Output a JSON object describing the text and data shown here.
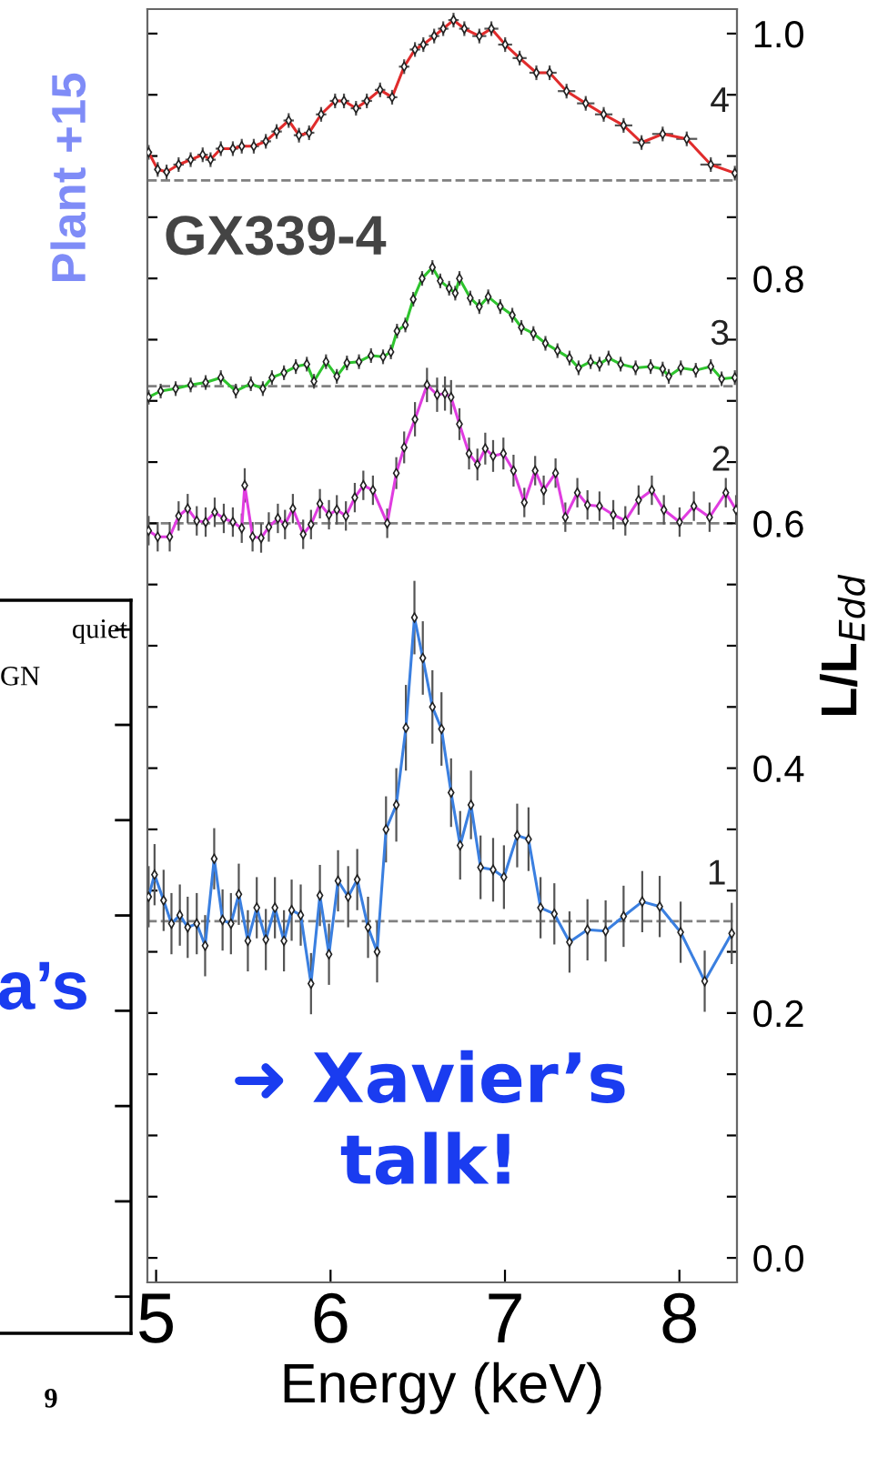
{
  "chart_data": [
    {
      "type": "line",
      "xlabel": "Energy (keV)",
      "ylabel": "L/L$_{Edd}$",
      "xlim": [
        4.95,
        8.33
      ],
      "xticks": [
        5,
        6,
        7,
        8
      ],
      "ylim": [
        -0.02,
        1.02
      ],
      "yticks": [
        {
          "value": 0,
          "label": "0.0"
        },
        {
          "value": 0.05,
          "label": null
        },
        {
          "value": 0.1,
          "label": null
        },
        {
          "value": 0.15,
          "label": null
        },
        {
          "value": 0.2,
          "label": "0.2"
        },
        {
          "value": 0.25,
          "label": null
        },
        {
          "value": 0.3,
          "label": null
        },
        {
          "value": 0.35,
          "label": null
        },
        {
          "value": 0.4,
          "label": "0.4"
        },
        {
          "value": 0.45,
          "label": null
        },
        {
          "value": 0.5,
          "label": null
        },
        {
          "value": 0.55,
          "label": null
        },
        {
          "value": 0.6,
          "label": "0.6"
        },
        {
          "value": 0.65,
          "label": null
        },
        {
          "value": 0.7,
          "label": null
        },
        {
          "value": 0.75,
          "label": null
        },
        {
          "value": 0.8,
          "label": "0.8"
        },
        {
          "value": 0.85,
          "label": null
        },
        {
          "value": 0.9,
          "label": null
        },
        {
          "value": 0.95,
          "label": null
        },
        {
          "value": 1.0,
          "label": "1.0"
        }
      ],
      "marker": "diamond",
      "line_style": "solid",
      "grid": false,
      "legend": false,
      "annotations": [
        "GX339-4",
        "Plant +15",
        "➜ Xavier’s\ntalk!"
      ],
      "ref_lines": [
        {
          "axis": "y",
          "value": 0.275,
          "color": "#808080",
          "line_style": "dashed"
        },
        {
          "axis": "y",
          "value": 0.6,
          "color": "#808080",
          "line_style": "dashed"
        },
        {
          "axis": "y",
          "value": 0.712,
          "color": "#808080",
          "line_style": "dashed"
        },
        {
          "axis": "y",
          "value": 0.88,
          "color": "#808080",
          "line_style": "dashed"
        }
      ],
      "series": [
        {
          "name": "1",
          "color": "#3a7fe0",
          "x": [
            4.957,
            4.991,
            5.043,
            5.088,
            5.136,
            5.181,
            5.233,
            5.281,
            5.333,
            5.381,
            5.429,
            5.474,
            5.526,
            5.577,
            5.629,
            5.681,
            5.733,
            5.777,
            5.829,
            5.888,
            5.939,
            5.991,
            6.043,
            6.101,
            6.153,
            6.215,
            6.267,
            6.318,
            6.377,
            6.432,
            6.481,
            6.529,
            6.584,
            6.636,
            6.691,
            6.743,
            6.805,
            6.86,
            6.932,
            6.994,
            7.07,
            7.135,
            7.204,
            7.283,
            7.37,
            7.473,
            7.577,
            7.68,
            7.787,
            7.887,
            8.007,
            8.145,
            8.3
          ],
          "values": [
            0.295,
            0.313,
            0.292,
            0.273,
            0.28,
            0.27,
            0.273,
            0.255,
            0.326,
            0.276,
            0.273,
            0.297,
            0.259,
            0.286,
            0.26,
            0.286,
            0.259,
            0.284,
            0.28,
            0.224,
            0.296,
            0.248,
            0.308,
            0.295,
            0.309,
            0.27,
            0.25,
            0.35,
            0.37,
            0.433,
            0.523,
            0.49,
            0.45,
            0.432,
            0.38,
            0.337,
            0.37,
            0.319,
            0.317,
            0.311,
            0.345,
            0.342,
            0.286,
            0.281,
            0.258,
            0.268,
            0.267,
            0.279,
            0.291,
            0.287,
            0.266,
            0.226,
            0.265
          ],
          "errors": [
            0.025,
            0.025,
            0.025,
            0.025,
            0.025,
            0.025,
            0.025,
            0.025,
            0.025,
            0.025,
            0.025,
            0.025,
            0.025,
            0.025,
            0.025,
            0.025,
            0.025,
            0.025,
            0.025,
            0.025,
            0.025,
            0.025,
            0.025,
            0.025,
            0.025,
            0.025,
            0.025,
            0.027,
            0.03,
            0.035,
            0.03,
            0.03,
            0.03,
            0.03,
            0.028,
            0.028,
            0.028,
            0.026,
            0.026,
            0.026,
            0.026,
            0.026,
            0.025,
            0.025,
            0.025,
            0.025,
            0.025,
            0.025,
            0.025,
            0.025,
            0.025,
            0.025,
            0.025
          ]
        },
        {
          "name": "2",
          "color": "#e03ce0",
          "x": [
            4.957,
            5.009,
            5.078,
            5.129,
            5.181,
            5.233,
            5.284,
            5.336,
            5.388,
            5.44,
            5.491,
            5.508,
            5.553,
            5.602,
            5.646,
            5.698,
            5.739,
            5.784,
            5.843,
            5.888,
            5.939,
            5.991,
            6.036,
            6.088,
            6.139,
            6.188,
            6.243,
            6.325,
            6.377,
            6.422,
            6.484,
            6.553,
            6.611,
            6.656,
            6.691,
            6.739,
            6.794,
            6.842,
            6.887,
            6.932,
            6.991,
            7.049,
            7.111,
            7.173,
            7.222,
            7.29,
            7.346,
            7.415,
            7.473,
            7.542,
            7.621,
            7.69,
            7.766,
            7.842,
            7.911,
            8.001,
            8.083,
            8.173,
            8.266,
            8.325
          ],
          "values": [
            0.594,
            0.589,
            0.589,
            0.606,
            0.612,
            0.602,
            0.601,
            0.609,
            0.604,
            0.601,
            0.596,
            0.631,
            0.589,
            0.588,
            0.597,
            0.604,
            0.599,
            0.612,
            0.591,
            0.599,
            0.616,
            0.607,
            0.611,
            0.606,
            0.621,
            0.631,
            0.627,
            0.6,
            0.641,
            0.662,
            0.685,
            0.713,
            0.705,
            0.706,
            0.703,
            0.681,
            0.657,
            0.648,
            0.661,
            0.655,
            0.657,
            0.643,
            0.617,
            0.643,
            0.627,
            0.641,
            0.605,
            0.625,
            0.615,
            0.614,
            0.607,
            0.602,
            0.619,
            0.627,
            0.611,
            0.601,
            0.614,
            0.605,
            0.625,
            0.611
          ],
          "errors": [
            0.012,
            0.012,
            0.012,
            0.012,
            0.012,
            0.012,
            0.012,
            0.012,
            0.012,
            0.012,
            0.012,
            0.014,
            0.012,
            0.012,
            0.012,
            0.012,
            0.012,
            0.012,
            0.012,
            0.012,
            0.012,
            0.012,
            0.012,
            0.012,
            0.012,
            0.012,
            0.012,
            0.012,
            0.013,
            0.013,
            0.014,
            0.014,
            0.014,
            0.014,
            0.014,
            0.013,
            0.013,
            0.013,
            0.013,
            0.013,
            0.013,
            0.013,
            0.012,
            0.012,
            0.012,
            0.012,
            0.012,
            0.012,
            0.012,
            0.012,
            0.012,
            0.012,
            0.012,
            0.012,
            0.012,
            0.012,
            0.012,
            0.012,
            0.012,
            0.012
          ]
        },
        {
          "name": "3",
          "color": "#2ec42e",
          "x": [
            4.957,
            5.026,
            5.112,
            5.198,
            5.284,
            5.371,
            5.457,
            5.543,
            5.612,
            5.664,
            5.733,
            5.801,
            5.864,
            5.905,
            5.974,
            6.036,
            6.094,
            6.163,
            6.232,
            6.301,
            6.346,
            6.381,
            6.429,
            6.474,
            6.525,
            6.584,
            6.629,
            6.68,
            6.715,
            6.739,
            6.801,
            6.853,
            6.904,
            6.973,
            7.042,
            7.094,
            7.163,
            7.232,
            7.301,
            7.37,
            7.422,
            7.491,
            7.542,
            7.594,
            7.663,
            7.749,
            7.835,
            7.904,
            7.939,
            8.008,
            8.094,
            8.18,
            8.242,
            8.318
          ],
          "values": [
            0.703,
            0.708,
            0.71,
            0.713,
            0.715,
            0.719,
            0.708,
            0.714,
            0.71,
            0.719,
            0.723,
            0.728,
            0.73,
            0.716,
            0.732,
            0.72,
            0.731,
            0.732,
            0.737,
            0.736,
            0.74,
            0.757,
            0.762,
            0.783,
            0.8,
            0.809,
            0.798,
            0.792,
            0.788,
            0.8,
            0.784,
            0.777,
            0.785,
            0.777,
            0.77,
            0.76,
            0.755,
            0.747,
            0.741,
            0.735,
            0.727,
            0.732,
            0.73,
            0.735,
            0.73,
            0.727,
            0.728,
            0.726,
            0.72,
            0.727,
            0.725,
            0.728,
            0.718,
            0.719
          ],
          "errors": [
            0.006,
            0.006,
            0.006,
            0.006,
            0.006,
            0.006,
            0.006,
            0.006,
            0.006,
            0.006,
            0.006,
            0.006,
            0.006,
            0.006,
            0.006,
            0.006,
            0.006,
            0.006,
            0.006,
            0.006,
            0.006,
            0.006,
            0.006,
            0.006,
            0.006,
            0.006,
            0.006,
            0.006,
            0.006,
            0.006,
            0.006,
            0.006,
            0.006,
            0.006,
            0.006,
            0.006,
            0.006,
            0.006,
            0.006,
            0.006,
            0.006,
            0.006,
            0.006,
            0.006,
            0.006,
            0.006,
            0.006,
            0.006,
            0.006,
            0.006,
            0.006,
            0.006,
            0.006,
            0.006
          ]
        },
        {
          "name": "4",
          "color": "#e02c2c",
          "x": [
            4.957,
            5.009,
            5.06,
            5.129,
            5.198,
            5.267,
            5.312,
            5.371,
            5.44,
            5.491,
            5.56,
            5.629,
            5.691,
            5.76,
            5.819,
            5.877,
            5.946,
            6.026,
            6.077,
            6.146,
            6.208,
            6.284,
            6.353,
            6.422,
            6.484,
            6.532,
            6.594,
            6.646,
            6.705,
            6.767,
            6.853,
            6.922,
            7.001,
            7.084,
            7.18,
            7.256,
            7.353,
            7.463,
            7.566,
            7.68,
            7.783,
            7.904,
            8.042,
            8.18,
            8.318
          ],
          "values": [
            0.903,
            0.889,
            0.887,
            0.893,
            0.897,
            0.901,
            0.897,
            0.906,
            0.906,
            0.908,
            0.908,
            0.912,
            0.92,
            0.929,
            0.917,
            0.919,
            0.934,
            0.945,
            0.945,
            0.939,
            0.945,
            0.954,
            0.948,
            0.973,
            0.987,
            0.991,
            0.998,
            1.004,
            1.011,
            1.004,
            0.998,
            1.004,
            0.991,
            0.98,
            0.968,
            0.968,
            0.953,
            0.943,
            0.934,
            0.925,
            0.911,
            0.918,
            0.914,
            0.893,
            0.886
          ],
          "errors": [
            0.006,
            0.006,
            0.006,
            0.006,
            0.006,
            0.006,
            0.006,
            0.006,
            0.006,
            0.006,
            0.006,
            0.006,
            0.006,
            0.006,
            0.006,
            0.006,
            0.006,
            0.006,
            0.006,
            0.006,
            0.006,
            0.006,
            0.006,
            0.006,
            0.006,
            0.006,
            0.006,
            0.006,
            0.006,
            0.006,
            0.006,
            0.006,
            0.006,
            0.006,
            0.006,
            0.006,
            0.006,
            0.006,
            0.006,
            0.006,
            0.006,
            0.006,
            0.006,
            0.006,
            0.006
          ],
          "xerrors": [
            0.02,
            0.02,
            0.02,
            0.03,
            0.03,
            0.03,
            0.03,
            0.03,
            0.03,
            0.03,
            0.03,
            0.03,
            0.03,
            0.03,
            0.03,
            0.03,
            0.03,
            0.03,
            0.03,
            0.03,
            0.03,
            0.03,
            0.03,
            0.03,
            0.03,
            0.03,
            0.03,
            0.03,
            0.03,
            0.03,
            0.04,
            0.04,
            0.04,
            0.04,
            0.04,
            0.04,
            0.05,
            0.05,
            0.05,
            0.05,
            0.05,
            0.06,
            0.06,
            0.06,
            0.01
          ]
        }
      ]
    },
    {
      "type": "other",
      "annotations": [
        "quiet",
        "GN",
        "a’s",
        "9"
      ]
    }
  ]
}
